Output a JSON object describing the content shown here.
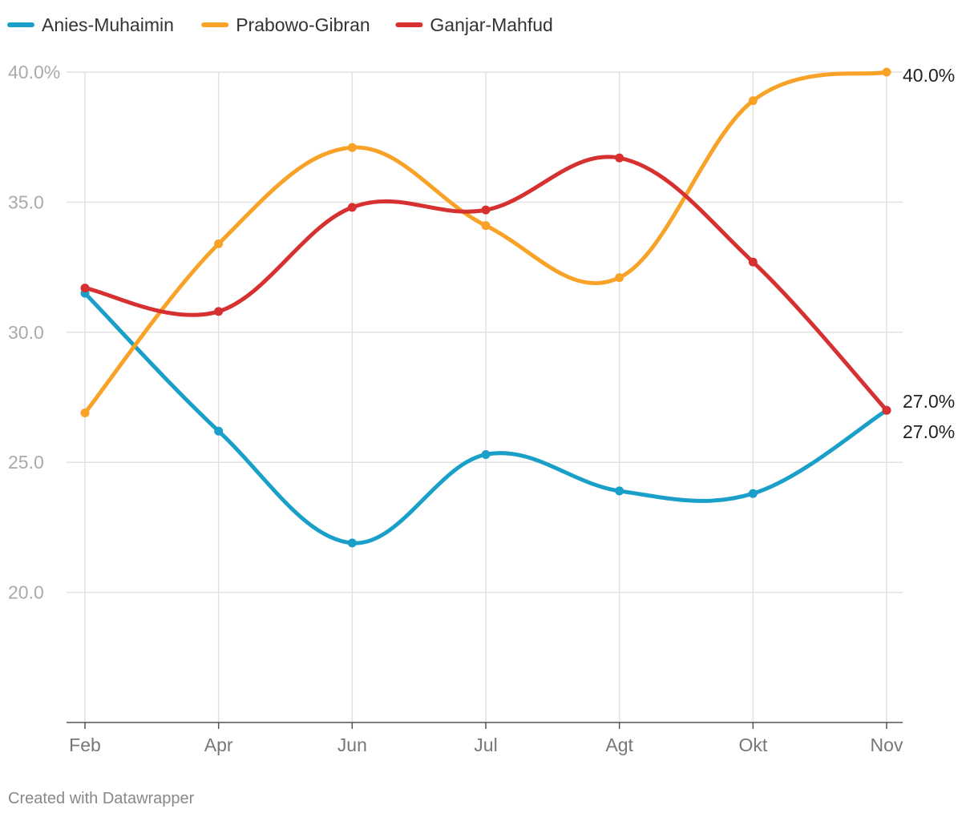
{
  "credit": "Created with Datawrapper",
  "chart_data": {
    "type": "line",
    "title": "",
    "xlabel": "",
    "ylabel": "",
    "categories": [
      "Feb",
      "Apr",
      "Jun",
      "Jul",
      "Agt",
      "Okt",
      "Nov"
    ],
    "ylim": [
      15,
      40
    ],
    "yticks": [
      {
        "value": 40,
        "label": "40.0%"
      },
      {
        "value": 35,
        "label": "35.0"
      },
      {
        "value": 30,
        "label": "30.0"
      },
      {
        "value": 25,
        "label": "25.0"
      },
      {
        "value": 20,
        "label": "20.0"
      }
    ],
    "grid": true,
    "legend_position": "top-left",
    "series": [
      {
        "name": "Anies-Muhaimin",
        "color": "#1a9fc9",
        "values": [
          31.5,
          26.2,
          21.9,
          25.3,
          23.9,
          23.8,
          27.0
        ],
        "end_label": "27.0%"
      },
      {
        "name": "Prabowo-Gibran",
        "color": "#f8a227",
        "values": [
          26.9,
          33.4,
          37.1,
          34.1,
          32.1,
          38.9,
          40.0
        ],
        "end_label": "40.0%"
      },
      {
        "name": "Ganjar-Mahfud",
        "color": "#d63130",
        "values": [
          31.7,
          30.8,
          34.8,
          34.7,
          36.7,
          32.7,
          27.0
        ],
        "end_label": "27.0%"
      }
    ]
  }
}
